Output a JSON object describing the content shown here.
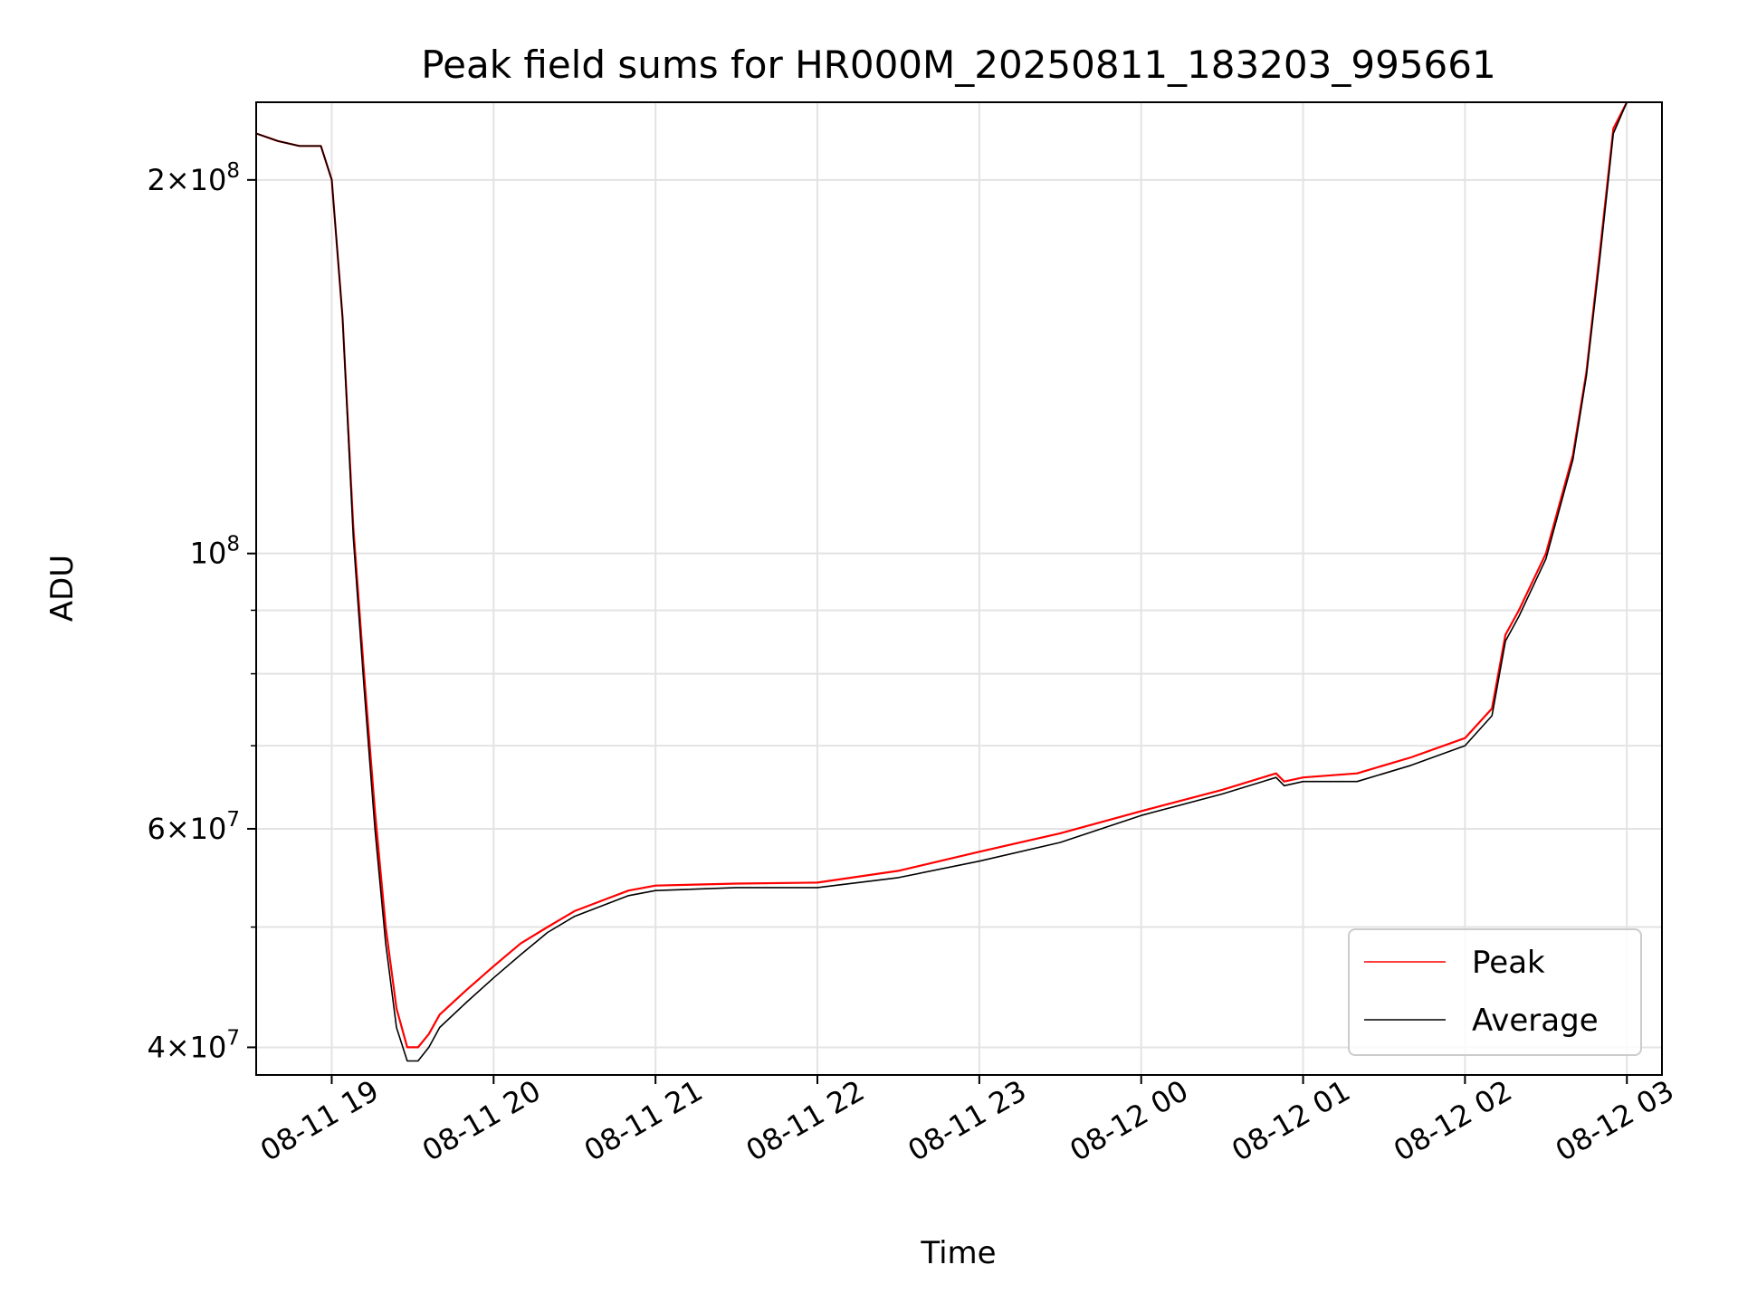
{
  "chart_data": {
    "type": "line",
    "title": "Peak field sums for HR000M_20250811_183203_995661",
    "xlabel": "Time",
    "ylabel": "ADU",
    "y_scale": "log",
    "ylim": [
      38000000,
      231000000
    ],
    "xlim": [
      "2025-08-11 18:32",
      "2025-08-12 03:13"
    ],
    "grid": true,
    "legend_position": "lower right",
    "x_ticks": [
      {
        "value": "2025-08-11 19:00",
        "label": "08-11 19"
      },
      {
        "value": "2025-08-11 20:00",
        "label": "08-11 20"
      },
      {
        "value": "2025-08-11 21:00",
        "label": "08-11 21"
      },
      {
        "value": "2025-08-11 22:00",
        "label": "08-11 22"
      },
      {
        "value": "2025-08-11 23:00",
        "label": "08-11 23"
      },
      {
        "value": "2025-08-12 00:00",
        "label": "08-12 00"
      },
      {
        "value": "2025-08-12 01:00",
        "label": "08-12 01"
      },
      {
        "value": "2025-08-12 02:00",
        "label": "08-12 02"
      },
      {
        "value": "2025-08-12 03:00",
        "label": "08-12 03"
      }
    ],
    "y_major_ticks": [
      {
        "value": 40000000,
        "mant": "4",
        "exp": "7"
      },
      {
        "value": 60000000,
        "mant": "6",
        "exp": "7"
      },
      {
        "value": 100000000,
        "mant": "",
        "exp": "8"
      },
      {
        "value": 200000000,
        "mant": "2",
        "exp": "8"
      }
    ],
    "y_minor_ticks": [
      50000000,
      70000000,
      80000000,
      90000000
    ],
    "series": [
      {
        "name": "Peak",
        "color": "#ff0000",
        "x": [
          "2025-08-11 18:32",
          "2025-08-11 18:40",
          "2025-08-11 18:48",
          "2025-08-11 18:56",
          "2025-08-11 19:00",
          "2025-08-11 19:04",
          "2025-08-11 19:08",
          "2025-08-11 19:12",
          "2025-08-11 19:16",
          "2025-08-11 19:20",
          "2025-08-11 19:24",
          "2025-08-11 19:28",
          "2025-08-11 19:32",
          "2025-08-11 19:36",
          "2025-08-11 19:40",
          "2025-08-11 19:50",
          "2025-08-11 20:00",
          "2025-08-11 20:10",
          "2025-08-11 20:20",
          "2025-08-11 20:30",
          "2025-08-11 20:40",
          "2025-08-11 20:50",
          "2025-08-11 21:00",
          "2025-08-11 21:30",
          "2025-08-11 22:00",
          "2025-08-11 22:30",
          "2025-08-11 23:00",
          "2025-08-11 23:30",
          "2025-08-12 00:00",
          "2025-08-12 00:30",
          "2025-08-12 00:50",
          "2025-08-12 00:53",
          "2025-08-12 01:00",
          "2025-08-12 01:20",
          "2025-08-12 01:40",
          "2025-08-12 02:00",
          "2025-08-12 02:10",
          "2025-08-12 02:15",
          "2025-08-12 02:20",
          "2025-08-12 02:30",
          "2025-08-12 02:40",
          "2025-08-12 02:45",
          "2025-08-12 02:50",
          "2025-08-12 02:55",
          "2025-08-12 03:00"
        ],
        "y": [
          218000000,
          215000000,
          213000000,
          213000000,
          200000000,
          155000000,
          105000000,
          80000000,
          62000000,
          50000000,
          43000000,
          40000000,
          40000000,
          41000000,
          42500000,
          44500000,
          46500000,
          48500000,
          50000000,
          51500000,
          52500000,
          53500000,
          54000000,
          54200000,
          54300000,
          55500000,
          57500000,
          59500000,
          62000000,
          64500000,
          66500000,
          65500000,
          66000000,
          66500000,
          68500000,
          71000000,
          75000000,
          86000000,
          90000000,
          100000000,
          120000000,
          140000000,
          175000000,
          220000000,
          231000000
        ]
      },
      {
        "name": "Average",
        "color": "#000000",
        "x": [
          "2025-08-11 18:32",
          "2025-08-11 18:40",
          "2025-08-11 18:48",
          "2025-08-11 18:56",
          "2025-08-11 19:00",
          "2025-08-11 19:04",
          "2025-08-11 19:08",
          "2025-08-11 19:12",
          "2025-08-11 19:16",
          "2025-08-11 19:20",
          "2025-08-11 19:24",
          "2025-08-11 19:28",
          "2025-08-11 19:32",
          "2025-08-11 19:36",
          "2025-08-11 19:40",
          "2025-08-11 19:50",
          "2025-08-11 20:00",
          "2025-08-11 20:10",
          "2025-08-11 20:20",
          "2025-08-11 20:30",
          "2025-08-11 20:40",
          "2025-08-11 20:50",
          "2025-08-11 21:00",
          "2025-08-11 21:30",
          "2025-08-11 22:00",
          "2025-08-11 22:30",
          "2025-08-11 23:00",
          "2025-08-11 23:30",
          "2025-08-12 00:00",
          "2025-08-12 00:30",
          "2025-08-12 00:50",
          "2025-08-12 00:53",
          "2025-08-12 01:00",
          "2025-08-12 01:20",
          "2025-08-12 01:40",
          "2025-08-12 02:00",
          "2025-08-12 02:10",
          "2025-08-12 02:15",
          "2025-08-12 02:20",
          "2025-08-12 02:30",
          "2025-08-12 02:40",
          "2025-08-12 02:45",
          "2025-08-12 02:50",
          "2025-08-12 02:55",
          "2025-08-12 03:00"
        ],
        "y": [
          218000000,
          215000000,
          213000000,
          213000000,
          200000000,
          155000000,
          103000000,
          78000000,
          60000000,
          48500000,
          41500000,
          39000000,
          39000000,
          40000000,
          41500000,
          43500000,
          45500000,
          47500000,
          49500000,
          51000000,
          52000000,
          53000000,
          53500000,
          53800000,
          53800000,
          54800000,
          56500000,
          58500000,
          61500000,
          64000000,
          66000000,
          65000000,
          65500000,
          65500000,
          67500000,
          70000000,
          74000000,
          85000000,
          89000000,
          99000000,
          119000000,
          139000000,
          173000000,
          218000000,
          231000000
        ]
      }
    ]
  }
}
